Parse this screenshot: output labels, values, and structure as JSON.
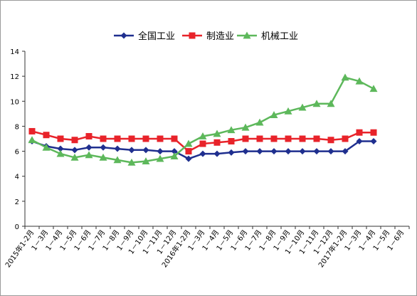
{
  "chart_data": {
    "type": "line",
    "title": "",
    "xlabel": "",
    "ylabel": "",
    "ylim": [
      0,
      14
    ],
    "yticks": [
      0,
      2,
      4,
      6,
      8,
      10,
      12,
      14
    ],
    "grid": false,
    "legend_position": "top-center",
    "categories": [
      "2015年1-2月",
      "1－3月",
      "1－4月",
      "1－5月",
      "1－6月",
      "1－7月",
      "1－8月",
      "1－9月",
      "1－10月",
      "1－11月",
      "1－12月",
      "2016年1-2月",
      "1－3月",
      "1－4月",
      "1－5月",
      "1－6月",
      "1－7月",
      "1－8月",
      "1－9月",
      "1－10月",
      "1－11月",
      "1－12月",
      "2017年1-2月",
      "1－3月",
      "1－4月",
      "1－5月",
      "1－6月"
    ],
    "series": [
      {
        "name": "全国工业",
        "color": "#1f2f8f",
        "marker": "diamond",
        "values": [
          6.8,
          6.4,
          6.2,
          6.1,
          6.3,
          6.3,
          6.2,
          6.1,
          6.1,
          6.0,
          6.0,
          5.4,
          5.8,
          5.8,
          5.9,
          6.0,
          6.0,
          6.0,
          6.0,
          6.0,
          6.0,
          6.0,
          6.0,
          6.8,
          6.8,
          null,
          null
        ]
      },
      {
        "name": "制造业",
        "color": "#e8232a",
        "marker": "square",
        "values": [
          7.6,
          7.3,
          7.0,
          6.9,
          7.2,
          7.0,
          7.0,
          7.0,
          7.0,
          7.0,
          7.0,
          6.0,
          6.6,
          6.7,
          6.8,
          7.0,
          7.0,
          7.0,
          7.0,
          7.0,
          7.0,
          6.9,
          7.0,
          7.5,
          7.5,
          null,
          null
        ]
      },
      {
        "name": "机械工业",
        "color": "#5db85b",
        "marker": "triangle",
        "values": [
          6.9,
          6.3,
          5.8,
          5.5,
          5.7,
          5.5,
          5.3,
          5.1,
          5.2,
          5.4,
          5.6,
          6.6,
          7.2,
          7.4,
          7.7,
          7.9,
          8.3,
          8.9,
          9.2,
          9.5,
          9.8,
          9.8,
          11.9,
          11.6,
          11.0,
          null,
          null
        ]
      }
    ]
  }
}
